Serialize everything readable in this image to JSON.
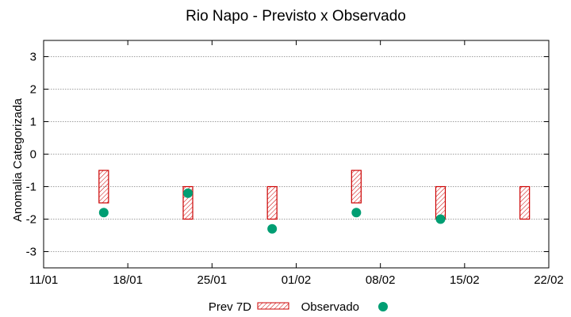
{
  "chart_data": {
    "type": "range-and-scatter",
    "title": "Rio Napo - Previsto x Observado",
    "ylabel": "Anomalia Categorizada",
    "xlabel": "",
    "ylim": [
      -3.5,
      3.5
    ],
    "yticks": [
      3,
      2,
      1,
      0,
      -1,
      -2,
      -3
    ],
    "x_day_range": [
      0,
      42
    ],
    "xticks": [
      {
        "day": 0,
        "label": "11/01"
      },
      {
        "day": 7,
        "label": "18/01"
      },
      {
        "day": 14,
        "label": "25/01"
      },
      {
        "day": 21,
        "label": "01/02"
      },
      {
        "day": 28,
        "label": "08/02"
      },
      {
        "day": 35,
        "label": "15/02"
      },
      {
        "day": 42,
        "label": "22/02"
      }
    ],
    "grid": true,
    "series": [
      {
        "name": "Prev 7D",
        "kind": "range-bar",
        "color": "#cc0000",
        "points": [
          {
            "day": 5,
            "low": -1.5,
            "high": -0.5
          },
          {
            "day": 12,
            "low": -2.0,
            "high": -1.0
          },
          {
            "day": 19,
            "low": -2.0,
            "high": -1.0
          },
          {
            "day": 26,
            "low": -1.5,
            "high": -0.5
          },
          {
            "day": 33,
            "low": -2.0,
            "high": -1.0
          },
          {
            "day": 40,
            "low": -2.0,
            "high": -1.0
          }
        ]
      },
      {
        "name": "Observado",
        "kind": "point",
        "color": "#009e73",
        "points": [
          {
            "day": 5,
            "value": -1.8
          },
          {
            "day": 12,
            "value": -1.2
          },
          {
            "day": 19,
            "value": -2.3
          },
          {
            "day": 26,
            "value": -1.8
          },
          {
            "day": 33,
            "value": -2.0
          }
        ]
      }
    ]
  }
}
